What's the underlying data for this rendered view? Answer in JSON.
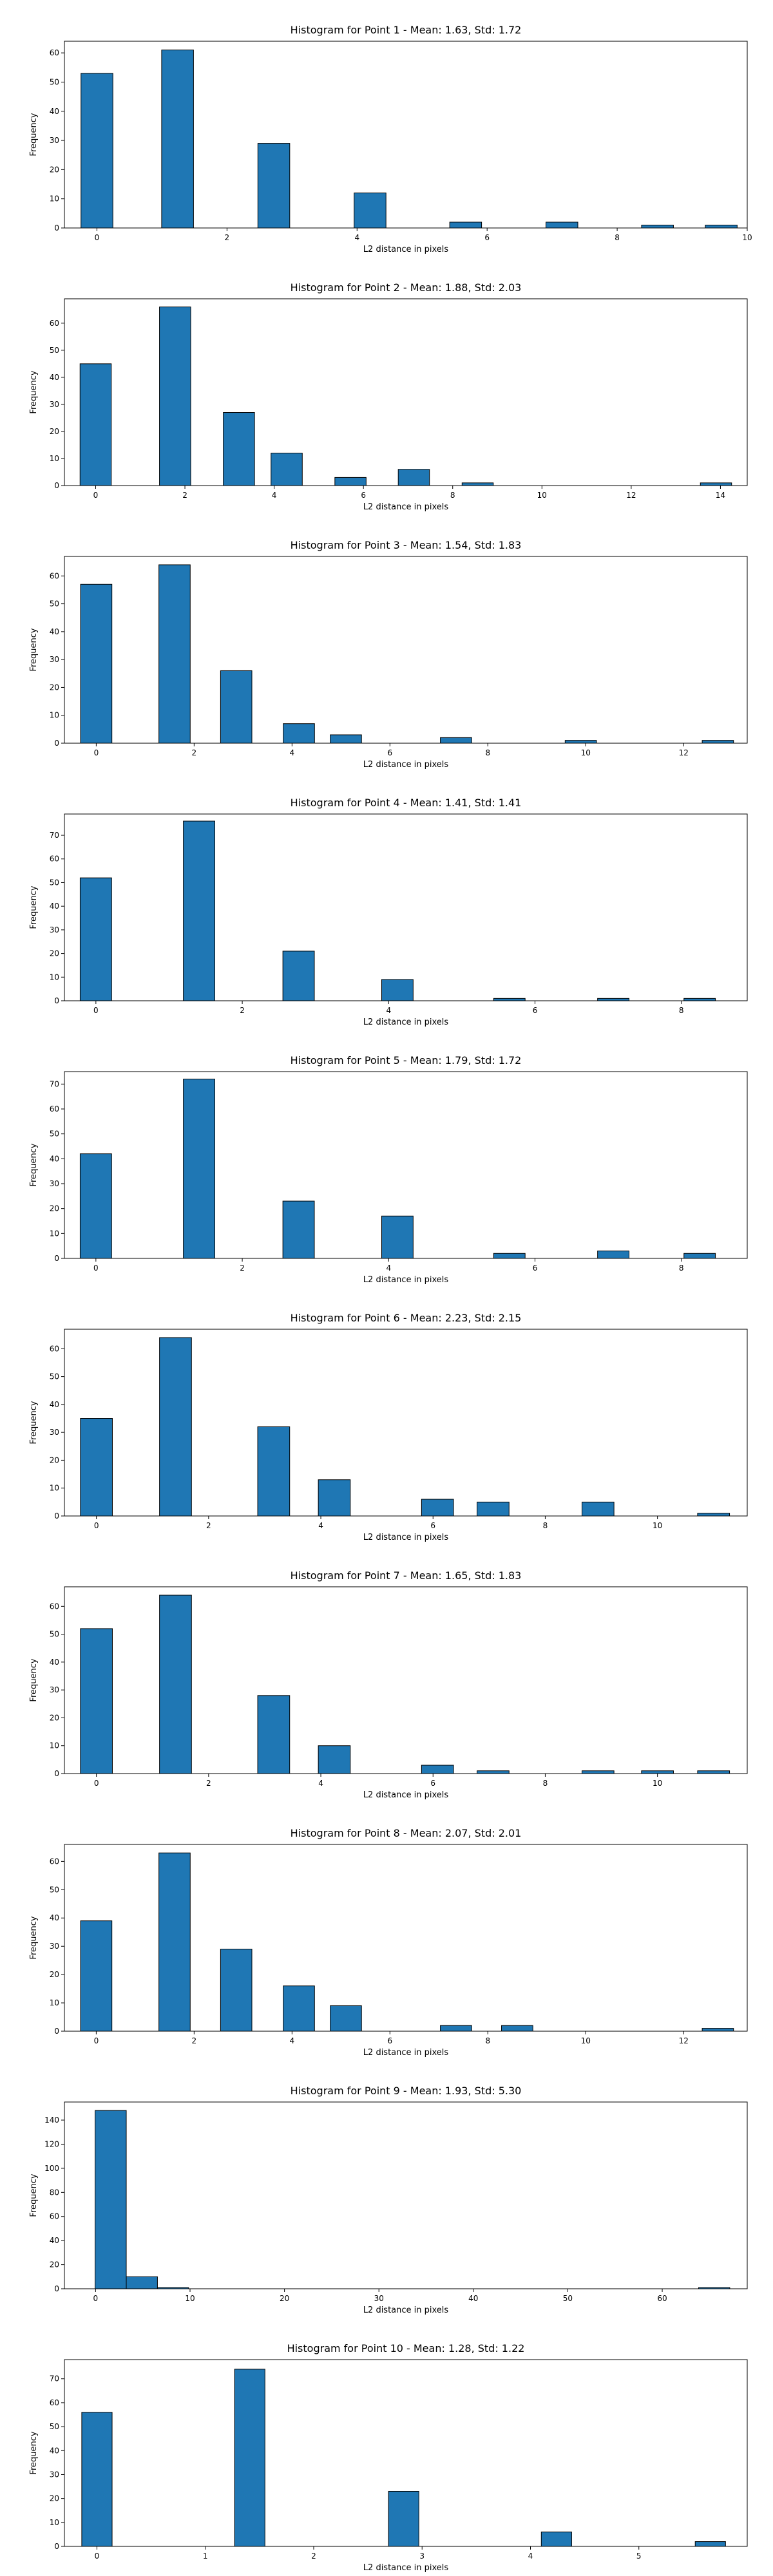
{
  "chart_data": [
    {
      "type": "bar",
      "title": "Histogram for Point 1 - Mean: 1.63, Std: 1.72",
      "xlabel": "L2 distance in pixels",
      "ylabel": "Frequency",
      "xlim": [
        -0.5,
        10.0
      ],
      "ylim": [
        0,
        64
      ],
      "xticks": [
        0,
        2,
        4,
        6,
        8,
        10
      ],
      "yticks": [
        0,
        10,
        20,
        30,
        40,
        50,
        60
      ],
      "bin_width": 0.49,
      "bars": [
        {
          "x": 0.0,
          "value": 53
        },
        {
          "x": 1.24,
          "value": 61
        },
        {
          "x": 2.72,
          "value": 29
        },
        {
          "x": 4.2,
          "value": 12
        },
        {
          "x": 5.67,
          "value": 2
        },
        {
          "x": 7.15,
          "value": 2
        },
        {
          "x": 8.62,
          "value": 1
        },
        {
          "x": 9.6,
          "value": 1
        }
      ]
    },
    {
      "type": "bar",
      "title": "Histogram for Point 2 - Mean: 1.88, Std: 2.03",
      "xlabel": "L2 distance in pixels",
      "ylabel": "Frequency",
      "xlim": [
        -0.7,
        14.6
      ],
      "ylim": [
        0,
        69
      ],
      "xticks": [
        0,
        2,
        4,
        6,
        8,
        10,
        12,
        14
      ],
      "yticks": [
        0,
        10,
        20,
        30,
        40,
        50,
        60
      ],
      "bin_width": 0.7,
      "bars": [
        {
          "x": 0.0,
          "value": 45
        },
        {
          "x": 1.78,
          "value": 66
        },
        {
          "x": 3.21,
          "value": 27
        },
        {
          "x": 4.28,
          "value": 12
        },
        {
          "x": 5.71,
          "value": 3
        },
        {
          "x": 7.13,
          "value": 6
        },
        {
          "x": 8.56,
          "value": 1
        },
        {
          "x": 13.9,
          "value": 1
        }
      ]
    },
    {
      "type": "bar",
      "title": "Histogram for Point 3 - Mean: 1.54, Std: 1.83",
      "xlabel": "L2 distance in pixels",
      "ylabel": "Frequency",
      "xlim": [
        -0.65,
        13.3
      ],
      "ylim": [
        0,
        67
      ],
      "xticks": [
        0,
        2,
        4,
        6,
        8,
        10,
        12
      ],
      "yticks": [
        0,
        10,
        20,
        30,
        40,
        50,
        60
      ],
      "bin_width": 0.64,
      "bars": [
        {
          "x": 0.0,
          "value": 57
        },
        {
          "x": 1.6,
          "value": 64
        },
        {
          "x": 2.86,
          "value": 26
        },
        {
          "x": 4.14,
          "value": 7
        },
        {
          "x": 5.1,
          "value": 3
        },
        {
          "x": 7.35,
          "value": 2
        },
        {
          "x": 9.9,
          "value": 1
        },
        {
          "x": 12.7,
          "value": 1
        }
      ]
    },
    {
      "type": "bar",
      "title": "Histogram for Point 4 - Mean: 1.41, Std: 1.41",
      "xlabel": "L2 distance in pixels",
      "ylabel": "Frequency",
      "xlim": [
        -0.43,
        8.9
      ],
      "ylim": [
        0,
        79
      ],
      "xticks": [
        0,
        2,
        4,
        6,
        8
      ],
      "yticks": [
        0,
        10,
        20,
        30,
        40,
        50,
        60,
        70
      ],
      "bin_width": 0.43,
      "bars": [
        {
          "x": 0.0,
          "value": 52
        },
        {
          "x": 1.41,
          "value": 76
        },
        {
          "x": 2.77,
          "value": 21
        },
        {
          "x": 4.12,
          "value": 9
        },
        {
          "x": 5.65,
          "value": 1
        },
        {
          "x": 7.07,
          "value": 1
        },
        {
          "x": 8.25,
          "value": 1
        }
      ]
    },
    {
      "type": "bar",
      "title": "Histogram for Point 5 - Mean: 1.79, Std: 1.72",
      "xlabel": "L2 distance in pixels",
      "ylabel": "Frequency",
      "xlim": [
        -0.43,
        8.9
      ],
      "ylim": [
        0,
        75
      ],
      "xticks": [
        0,
        2,
        4,
        6,
        8
      ],
      "yticks": [
        0,
        10,
        20,
        30,
        40,
        50,
        60,
        70
      ],
      "bin_width": 0.43,
      "bars": [
        {
          "x": 0.0,
          "value": 42
        },
        {
          "x": 1.41,
          "value": 72
        },
        {
          "x": 2.77,
          "value": 23
        },
        {
          "x": 4.12,
          "value": 17
        },
        {
          "x": 5.65,
          "value": 2
        },
        {
          "x": 7.07,
          "value": 3
        },
        {
          "x": 8.25,
          "value": 2
        }
      ]
    },
    {
      "type": "bar",
      "title": "Histogram for Point 6 - Mean: 2.23, Std: 2.15",
      "xlabel": "L2 distance in pixels",
      "ylabel": "Frequency",
      "xlim": [
        -0.57,
        11.6
      ],
      "ylim": [
        0,
        67
      ],
      "xticks": [
        0,
        2,
        4,
        6,
        8,
        10
      ],
      "yticks": [
        0,
        10,
        20,
        30,
        40,
        50,
        60
      ],
      "bin_width": 0.57,
      "bars": [
        {
          "x": 0.0,
          "value": 35
        },
        {
          "x": 1.41,
          "value": 64
        },
        {
          "x": 3.16,
          "value": 32
        },
        {
          "x": 4.24,
          "value": 13
        },
        {
          "x": 6.08,
          "value": 6
        },
        {
          "x": 7.07,
          "value": 5
        },
        {
          "x": 8.94,
          "value": 5
        },
        {
          "x": 11.0,
          "value": 1
        }
      ]
    },
    {
      "type": "bar",
      "title": "Histogram for Point 7 - Mean: 1.65, Std: 1.83",
      "xlabel": "L2 distance in pixels",
      "ylabel": "Frequency",
      "xlim": [
        -0.57,
        11.6
      ],
      "ylim": [
        0,
        67
      ],
      "xticks": [
        0,
        2,
        4,
        6,
        8,
        10
      ],
      "yticks": [
        0,
        10,
        20,
        30,
        40,
        50,
        60
      ],
      "bin_width": 0.57,
      "bars": [
        {
          "x": 0.0,
          "value": 52
        },
        {
          "x": 1.41,
          "value": 64
        },
        {
          "x": 3.16,
          "value": 28
        },
        {
          "x": 4.24,
          "value": 10
        },
        {
          "x": 6.08,
          "value": 3
        },
        {
          "x": 7.07,
          "value": 1
        },
        {
          "x": 8.94,
          "value": 1
        },
        {
          "x": 10.0,
          "value": 1
        },
        {
          "x": 11.0,
          "value": 1
        }
      ]
    },
    {
      "type": "bar",
      "title": "Histogram for Point 8 - Mean: 2.07, Std: 2.01",
      "xlabel": "L2 distance in pixels",
      "ylabel": "Frequency",
      "xlim": [
        -0.65,
        13.3
      ],
      "ylim": [
        0,
        66
      ],
      "xticks": [
        0,
        2,
        4,
        6,
        8,
        10,
        12
      ],
      "yticks": [
        0,
        10,
        20,
        30,
        40,
        50,
        60
      ],
      "bin_width": 0.64,
      "bars": [
        {
          "x": 0.0,
          "value": 39
        },
        {
          "x": 1.6,
          "value": 63
        },
        {
          "x": 2.86,
          "value": 29
        },
        {
          "x": 4.14,
          "value": 16
        },
        {
          "x": 5.1,
          "value": 9
        },
        {
          "x": 7.35,
          "value": 2
        },
        {
          "x": 8.6,
          "value": 2
        },
        {
          "x": 12.7,
          "value": 1
        }
      ]
    },
    {
      "type": "bar",
      "title": "Histogram for Point 9 - Mean: 1.93, Std: 5.30",
      "xlabel": "L2 distance in pixels",
      "ylabel": "Frequency",
      "xlim": [
        -3.3,
        69.0
      ],
      "ylim": [
        0,
        155
      ],
      "xticks": [
        0,
        10,
        20,
        30,
        40,
        50,
        60
      ],
      "yticks": [
        0,
        20,
        40,
        60,
        80,
        100,
        120,
        140
      ],
      "bin_width": 3.3,
      "bars": [
        {
          "x": 1.6,
          "value": 148
        },
        {
          "x": 4.9,
          "value": 10
        },
        {
          "x": 8.2,
          "value": 1
        },
        {
          "x": 65.5,
          "value": 1
        }
      ]
    },
    {
      "type": "bar",
      "title": "Histogram for Point 10 - Mean: 1.28, Std: 1.22",
      "xlabel": "L2 distance in pixels",
      "ylabel": "Frequency",
      "xlim": [
        -0.3,
        6.0
      ],
      "ylim": [
        0,
        78
      ],
      "xticks": [
        0,
        1,
        2,
        3,
        4,
        5
      ],
      "yticks": [
        0,
        10,
        20,
        30,
        40,
        50,
        60,
        70
      ],
      "bin_width": 0.28,
      "bars": [
        {
          "x": 0.0,
          "value": 56
        },
        {
          "x": 1.41,
          "value": 74
        },
        {
          "x": 2.83,
          "value": 23
        },
        {
          "x": 4.24,
          "value": 6
        },
        {
          "x": 5.66,
          "value": 2
        }
      ]
    }
  ]
}
